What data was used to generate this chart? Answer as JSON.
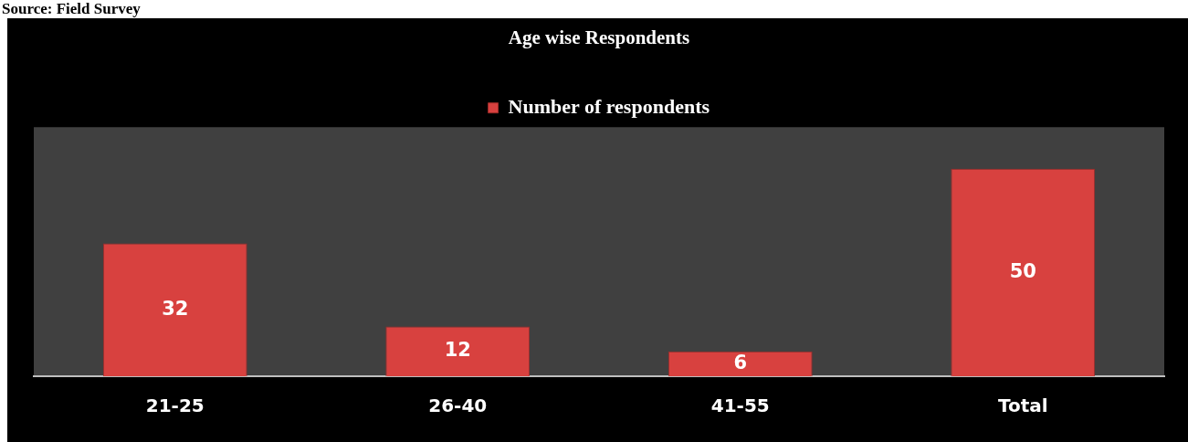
{
  "chart_data": {
    "type": "bar",
    "title": "Age wise Respondents",
    "annotations": [
      "Source: Field Survey"
    ],
    "categories": [
      "21-25",
      "26-40",
      "41-55",
      "Total"
    ],
    "series": [
      {
        "name": "Number of respondents",
        "color": "#d8413f",
        "values": [
          32,
          12,
          6,
          50
        ]
      }
    ],
    "data_labels": true,
    "legend": "top",
    "tick_labels": "x",
    "grid": false
  }
}
